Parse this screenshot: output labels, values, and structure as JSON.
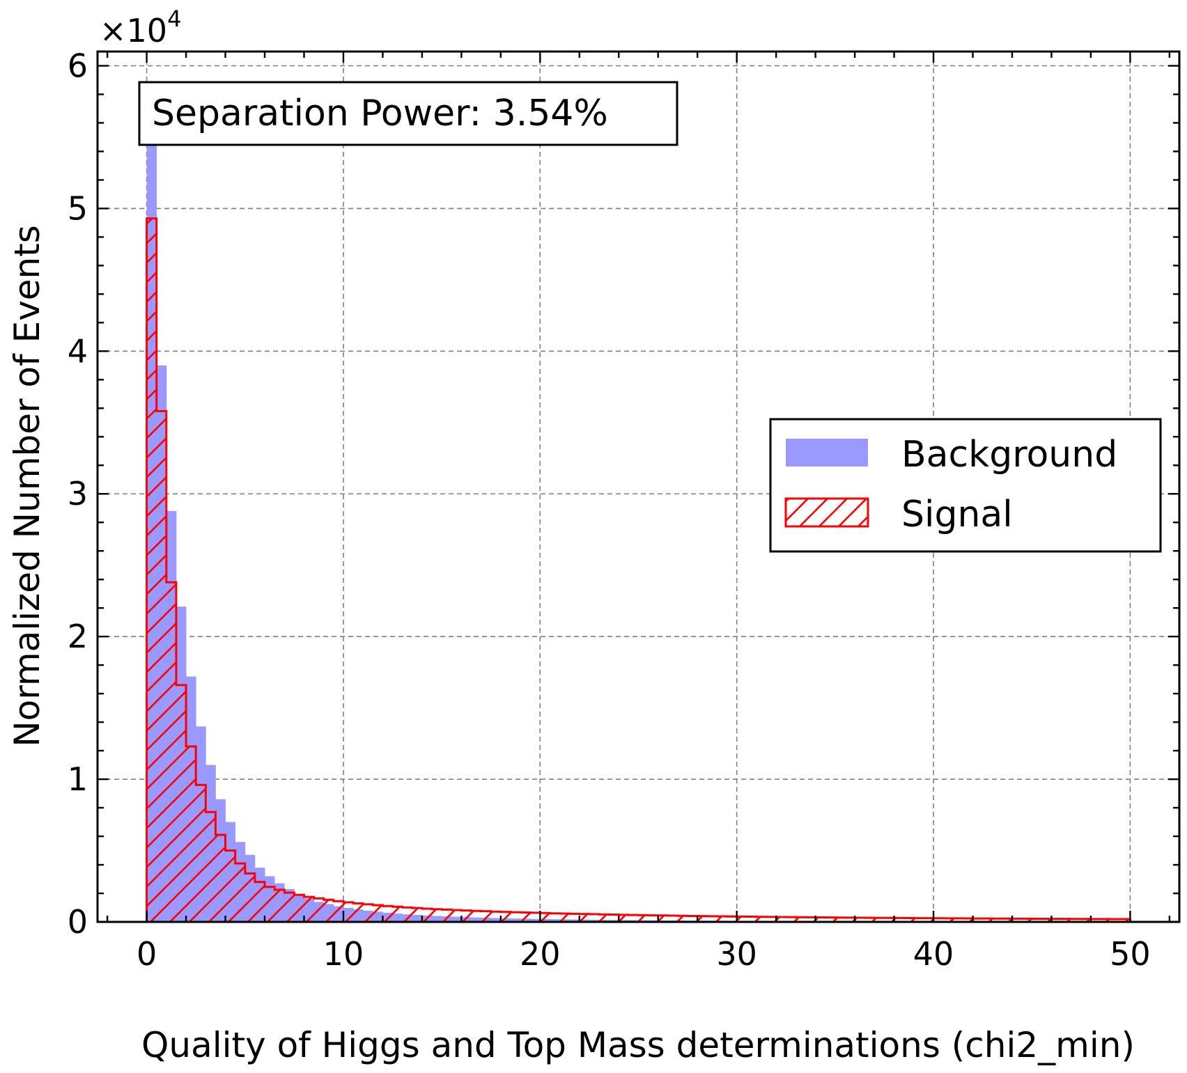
{
  "chart_data": {
    "type": "bar",
    "title": "",
    "xlabel": "Quality of Higgs and Top Mass determinations (chi2_min)",
    "ylabel": "Normalized Number of Events",
    "y_multiplier_label": "×10",
    "y_multiplier_exponent": "4",
    "xlim": [
      -2.5,
      52.5
    ],
    "ylim": [
      0,
      61000
    ],
    "x_ticks": [
      0,
      10,
      20,
      30,
      40,
      50
    ],
    "x_tick_labels": [
      "0",
      "10",
      "20",
      "30",
      "40",
      "50"
    ],
    "y_ticks": [
      0,
      10000,
      20000,
      30000,
      40000,
      50000,
      60000
    ],
    "y_tick_labels": [
      "0",
      "1",
      "2",
      "3",
      "4",
      "5",
      "6"
    ],
    "grid": true,
    "legend_position": "center-right",
    "annotation": "Separation Power: 3.54%",
    "bin_width": 0.5,
    "bin_start": 0,
    "series": [
      {
        "name": "Background",
        "style": "filled",
        "color": "#9999ff",
        "values": [
          54500,
          39000,
          28800,
          22100,
          17200,
          13700,
          11000,
          8600,
          7000,
          5600,
          4700,
          3800,
          3200,
          2700,
          2300,
          1900,
          1650,
          1400,
          1250,
          1100,
          980,
          880,
          790,
          710,
          640,
          580,
          530,
          490,
          450,
          420,
          390,
          360,
          330,
          310,
          290,
          270,
          255,
          240,
          225,
          210,
          200,
          190,
          180,
          170,
          160,
          150,
          143,
          136,
          130,
          124,
          118,
          112,
          107,
          102,
          97,
          93,
          89,
          85,
          81,
          78,
          75,
          72,
          69,
          66,
          63,
          61,
          59,
          57,
          55,
          53,
          51,
          49,
          47,
          46,
          44,
          43,
          41,
          40,
          39,
          38,
          37,
          36,
          35,
          34,
          33,
          32,
          31,
          30,
          29,
          28,
          27,
          26,
          25,
          25,
          24,
          23,
          22,
          22,
          21,
          20
        ]
      },
      {
        "name": "Signal",
        "style": "hatched-step",
        "color": "#ff0000",
        "values": [
          49300,
          35800,
          23800,
          16600,
          12300,
          9600,
          7700,
          6100,
          5000,
          4100,
          3400,
          2800,
          2450,
          2250,
          2050,
          1900,
          1750,
          1650,
          1550,
          1450,
          1370,
          1300,
          1230,
          1170,
          1110,
          1060,
          1010,
          970,
          930,
          890,
          860,
          830,
          800,
          770,
          750,
          720,
          700,
          680,
          660,
          640,
          620,
          600,
          585,
          570,
          555,
          540,
          525,
          510,
          497,
          484,
          472,
          460,
          449,
          438,
          427,
          417,
          407,
          398,
          389,
          380,
          372,
          364,
          356,
          349,
          342,
          335,
          328,
          322,
          316,
          310,
          304,
          299,
          293,
          288,
          283,
          278,
          273,
          269,
          264,
          260,
          256,
          252,
          248,
          244,
          240,
          236,
          233,
          229,
          226,
          223,
          220,
          217,
          214,
          211,
          208,
          205,
          203,
          200,
          197,
          195
        ]
      }
    ]
  }
}
